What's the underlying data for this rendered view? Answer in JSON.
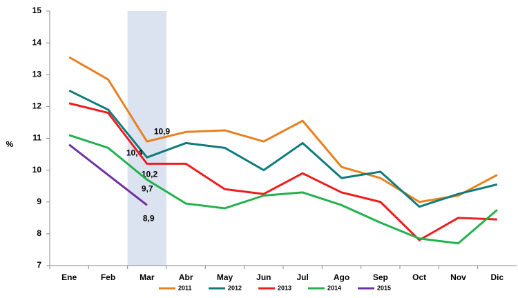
{
  "chart_data": {
    "type": "line",
    "y_label": "%",
    "categories": [
      "Ene",
      "Feb",
      "Mar",
      "Abr",
      "May",
      "Jun",
      "Jul",
      "Ago",
      "Sep",
      "Oct",
      "Nov",
      "Dic"
    ],
    "highlight_index": 2,
    "ylim": [
      7,
      15
    ],
    "yticks": [
      7,
      8,
      9,
      10,
      11,
      12,
      13,
      14,
      15
    ],
    "grid": false,
    "legend": "bottom",
    "series": [
      {
        "name": "2011",
        "color": "#e8801e",
        "values": [
          13.55,
          12.85,
          10.9,
          11.2,
          11.25,
          10.9,
          11.55,
          10.1,
          9.75,
          9.0,
          9.2,
          9.85
        ],
        "value_labels": [
          null,
          null,
          "10,9",
          null,
          null,
          null,
          null,
          null,
          null,
          null,
          null,
          null
        ]
      },
      {
        "name": "2012",
        "color": "#0f7b7b",
        "values": [
          12.5,
          11.9,
          10.4,
          10.85,
          10.7,
          10.0,
          10.85,
          9.75,
          9.95,
          8.85,
          9.25,
          9.55
        ],
        "value_labels": [
          null,
          null,
          "10,4",
          null,
          null,
          null,
          null,
          null,
          null,
          null,
          null,
          null
        ]
      },
      {
        "name": "2013",
        "color": "#ee1c1c",
        "values": [
          12.1,
          11.8,
          10.2,
          10.2,
          9.4,
          9.25,
          9.9,
          9.3,
          9.0,
          7.8,
          8.5,
          8.45
        ],
        "value_labels": [
          null,
          null,
          "10,2",
          null,
          null,
          null,
          null,
          null,
          null,
          null,
          null,
          null
        ]
      },
      {
        "name": "2014",
        "color": "#22b14c",
        "values": [
          11.1,
          10.7,
          9.7,
          8.95,
          8.8,
          9.2,
          9.3,
          8.9,
          8.35,
          7.85,
          7.7,
          8.75
        ],
        "value_labels": [
          null,
          null,
          "9,7",
          null,
          null,
          null,
          null,
          null,
          null,
          null,
          null,
          null
        ]
      },
      {
        "name": "2015",
        "color": "#7030a0",
        "values": [
          10.8,
          9.85,
          8.9,
          null,
          null,
          null,
          null,
          null,
          null,
          null,
          null,
          null
        ],
        "value_labels": [
          null,
          null,
          "8,9",
          null,
          null,
          null,
          null,
          null,
          null,
          null,
          null,
          null
        ]
      }
    ]
  }
}
